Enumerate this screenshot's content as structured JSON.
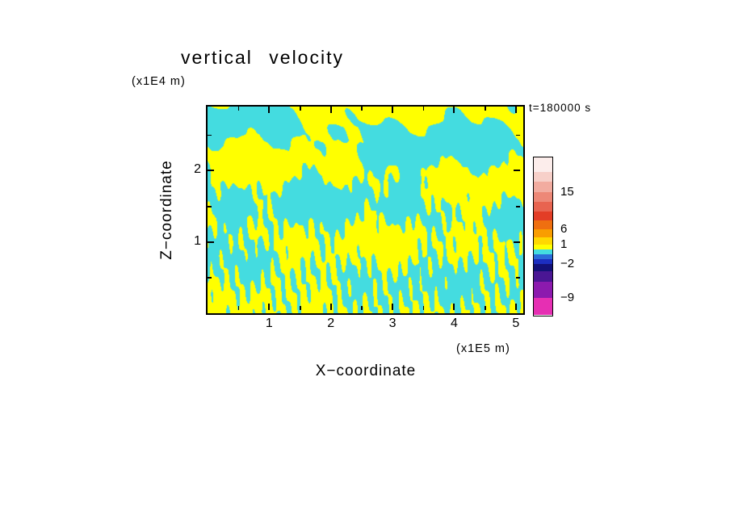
{
  "chart_data": {
    "type": "filled-contour",
    "title": "vertical velocity",
    "time_label": "t=180000 s",
    "xlabel": "X−coordinate",
    "ylabel": "Z−coordinate",
    "x_units": "(x1E5 m)",
    "z_units": "(x1E4 m)",
    "x_range": [
      0,
      5.12
    ],
    "z_range": [
      0,
      2.9
    ],
    "x_ticks": [
      "1",
      "2",
      "3",
      "4",
      "5"
    ],
    "z_ticks": [
      "1",
      "2"
    ],
    "minor_tick_step": 0.5,
    "field_colors": {
      "positive": "#FFFF00",
      "negative": "#44DCE0"
    },
    "field_synthesis": {
      "note": "two-tone filled contour of vertical velocity: yellow = updraft, cyan = downdraft; wavy horizontal bands with fine near-vertical streaks near the surface",
      "bias": -0.04,
      "components": [
        {
          "amp": 1.05,
          "fx": 0.35,
          "fz": 2.9,
          "ph": 0.6
        },
        {
          "amp": 0.85,
          "fx": -1.0,
          "fz": 1.5,
          "ph": 1.9
        },
        {
          "amp": 0.75,
          "fx": 3.3,
          "fz": 1.1,
          "ph": 0.2
        },
        {
          "amp": 0.65,
          "fx": 5.8,
          "fz": -2.2,
          "ph": 2.3
        },
        {
          "amp": 0.45,
          "fx": 9.5,
          "fz": 6.5,
          "ph": 1.1
        },
        {
          "amp": 1.15,
          "fx": 26.0,
          "fz": 4.0,
          "ph": 0.4,
          "env": "bottom"
        },
        {
          "amp": 0.75,
          "fx": 36.0,
          "fz": -2.5,
          "ph": 2.8,
          "env": "bottom"
        }
      ]
    },
    "colorbar": {
      "values": [
        "15",
        "6",
        "1",
        "−2",
        "−9"
      ],
      "segments": [
        {
          "color": "#FCEDEB",
          "h": 18
        },
        {
          "color": "#F7D0C9",
          "h": 12
        },
        {
          "color": "#F2ACA0",
          "h": 13,
          "label": "15"
        },
        {
          "color": "#ED8877",
          "h": 12
        },
        {
          "color": "#E86450",
          "h": 12
        },
        {
          "color": "#E33D26",
          "h": 11
        },
        {
          "color": "#EF6F10",
          "h": 11,
          "label": "6"
        },
        {
          "color": "#F99D00",
          "h": 10
        },
        {
          "color": "#FFD800",
          "h": 9,
          "label": "1"
        },
        {
          "color": "#FFFF00",
          "h": 6
        },
        {
          "color": "#44DCE0",
          "h": 6
        },
        {
          "color": "#2B6BD9",
          "h": 6
        },
        {
          "color": "#1C2EC0",
          "h": 6,
          "label": "−2"
        },
        {
          "color": "#131178",
          "h": 9
        },
        {
          "color": "#4A1694",
          "h": 13
        },
        {
          "color": "#8C1AAE",
          "h": 20,
          "label": "−9"
        },
        {
          "color": "#E62FB3",
          "h": 21
        }
      ]
    }
  }
}
